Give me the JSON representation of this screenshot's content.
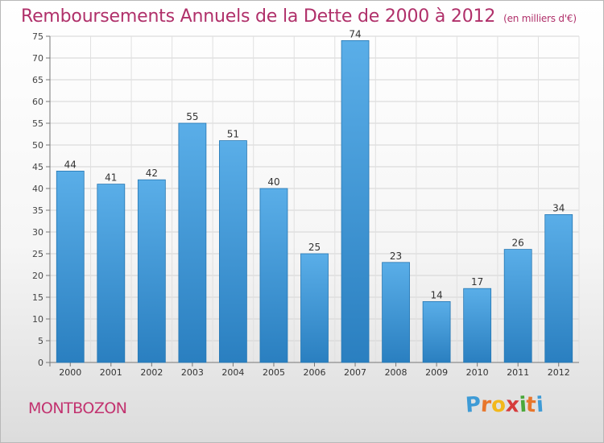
{
  "header": {
    "title": "Remboursements Annuels de la Dette de 2000 à 2012",
    "subtitle": "(en milliers d'€)"
  },
  "footer": {
    "town": "MONTBOZON",
    "brand": [
      "P",
      "r",
      "o",
      "x",
      "i",
      "t",
      "i"
    ],
    "brand_colors": [
      "#3e9bd6",
      "#e8762b",
      "#f2b81c",
      "#d63c3c",
      "#4aa83a",
      "#e8762b",
      "#3e9bd6"
    ]
  },
  "colors": {
    "bar_top": "#5aaee8",
    "bar_bottom": "#2a7fc0",
    "title": "#b0306a"
  },
  "chart_data": {
    "type": "bar",
    "categories": [
      "2000",
      "2001",
      "2002",
      "2003",
      "2004",
      "2005",
      "2006",
      "2007",
      "2008",
      "2009",
      "2010",
      "2011",
      "2012"
    ],
    "values": [
      44,
      41,
      42,
      55,
      51,
      40,
      25,
      74,
      23,
      14,
      17,
      26,
      34
    ],
    "ylim": [
      0,
      75
    ],
    "yticks": [
      0,
      5,
      10,
      15,
      20,
      25,
      30,
      35,
      40,
      45,
      50,
      55,
      60,
      65,
      70,
      75
    ],
    "grid": true
  }
}
